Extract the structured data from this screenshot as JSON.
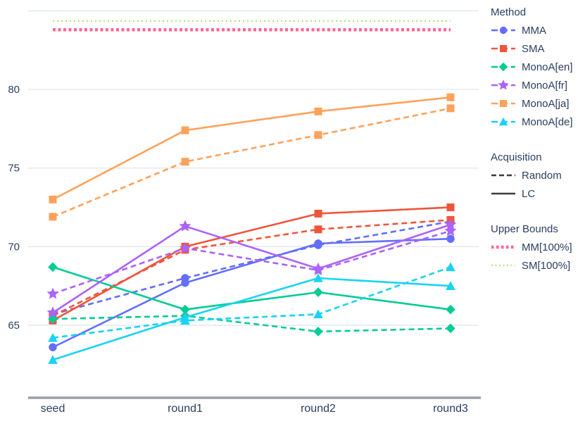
{
  "chart_data": {
    "type": "line",
    "categories": [
      "seed",
      "round1",
      "round2",
      "round3"
    ],
    "yticks": [
      65,
      70,
      75,
      80
    ],
    "gridlines": [
      65,
      70,
      75,
      80,
      85
    ],
    "ylim": [
      60.5,
      85.3
    ],
    "grid": true,
    "legend_position": "right",
    "series": [
      {
        "method": "MMA",
        "acquisition": "Random",
        "color": "#636EFA",
        "marker": "circle",
        "dash": "dash",
        "values": [
          65.7,
          68.0,
          70.1,
          71.6
        ]
      },
      {
        "method": "MMA",
        "acquisition": "LC",
        "color": "#636EFA",
        "marker": "circle",
        "dash": "solid",
        "values": [
          63.6,
          67.7,
          70.2,
          70.5
        ]
      },
      {
        "method": "SMA",
        "acquisition": "Random",
        "color": "#EF553B",
        "marker": "square",
        "dash": "dash",
        "values": [
          65.6,
          69.8,
          71.1,
          71.7
        ]
      },
      {
        "method": "SMA",
        "acquisition": "LC",
        "color": "#EF553B",
        "marker": "square",
        "dash": "solid",
        "values": [
          65.3,
          70.0,
          72.1,
          72.5
        ]
      },
      {
        "method": "MonoA[en]",
        "acquisition": "Random",
        "color": "#00CC96",
        "marker": "diamond",
        "dash": "dash",
        "values": [
          65.4,
          65.6,
          64.6,
          64.8
        ]
      },
      {
        "method": "MonoA[en]",
        "acquisition": "LC",
        "color": "#00CC96",
        "marker": "diamond",
        "dash": "solid",
        "values": [
          68.7,
          66.0,
          67.1,
          66.0
        ]
      },
      {
        "method": "MonoA[fr]",
        "acquisition": "Random",
        "color": "#AB63FA",
        "marker": "star",
        "dash": "dash",
        "values": [
          67.0,
          69.9,
          68.5,
          71.0
        ]
      },
      {
        "method": "MonoA[fr]",
        "acquisition": "LC",
        "color": "#AB63FA",
        "marker": "star",
        "dash": "solid",
        "values": [
          65.8,
          71.3,
          68.6,
          71.4
        ]
      },
      {
        "method": "MonoA[ja]",
        "acquisition": "Random",
        "color": "#FFA15A",
        "marker": "square",
        "dash": "dash",
        "values": [
          71.9,
          75.4,
          77.1,
          78.8
        ]
      },
      {
        "method": "MonoA[ja]",
        "acquisition": "LC",
        "color": "#FFA15A",
        "marker": "square",
        "dash": "solid",
        "values": [
          73.0,
          77.4,
          78.6,
          79.5
        ]
      },
      {
        "method": "MonoA[de]",
        "acquisition": "Random",
        "color": "#19D3F3",
        "marker": "triangle",
        "dash": "dash",
        "values": [
          64.2,
          65.3,
          65.7,
          68.7
        ]
      },
      {
        "method": "MonoA[de]",
        "acquisition": "LC",
        "color": "#19D3F3",
        "marker": "triangle",
        "dash": "solid",
        "values": [
          62.8,
          65.5,
          68.0,
          67.5
        ]
      }
    ],
    "upper_bounds": [
      {
        "label": "SM[100%]",
        "color": "#B6E880",
        "value": 84.35,
        "width": 2.5,
        "dash": "2 4"
      },
      {
        "label": "MM[100%]",
        "color": "#FF6692",
        "value": 83.8,
        "width": 4.5,
        "dash": "4 3.5"
      }
    ],
    "legend": {
      "method_title": "Method",
      "methods": [
        {
          "label": "MMA",
          "color": "#636EFA",
          "marker": "circle"
        },
        {
          "label": "SMA",
          "color": "#EF553B",
          "marker": "square"
        },
        {
          "label": "MonoA[en]",
          "color": "#00CC96",
          "marker": "diamond"
        },
        {
          "label": "MonoA[fr]",
          "color": "#AB63FA",
          "marker": "star"
        },
        {
          "label": "MonoA[ja]",
          "color": "#FFA15A",
          "marker": "square"
        },
        {
          "label": "MonoA[de]",
          "color": "#19D3F3",
          "marker": "triangle"
        }
      ],
      "acquisition_title": "Acquisition",
      "acquisitions": [
        {
          "label": "Random",
          "dash": "dash",
          "color": "#3b3b3b"
        },
        {
          "label": "LC",
          "dash": "solid",
          "color": "#3b3b3b"
        }
      ],
      "upper_title": "Upper Bounds",
      "uppers": [
        {
          "label": "MM[100%]",
          "color": "#FF6692",
          "width": 4.5,
          "dash": "3.5 3.5"
        },
        {
          "label": "SM[100%]",
          "color": "#B6E880",
          "width": 2.5,
          "dash": "2 3.5"
        }
      ]
    },
    "style": {
      "text_color": "#2a3f5f",
      "grid_color": "#E3E8EE",
      "axis_line_color": "#9aa0a6",
      "background": "#ffffff"
    }
  }
}
